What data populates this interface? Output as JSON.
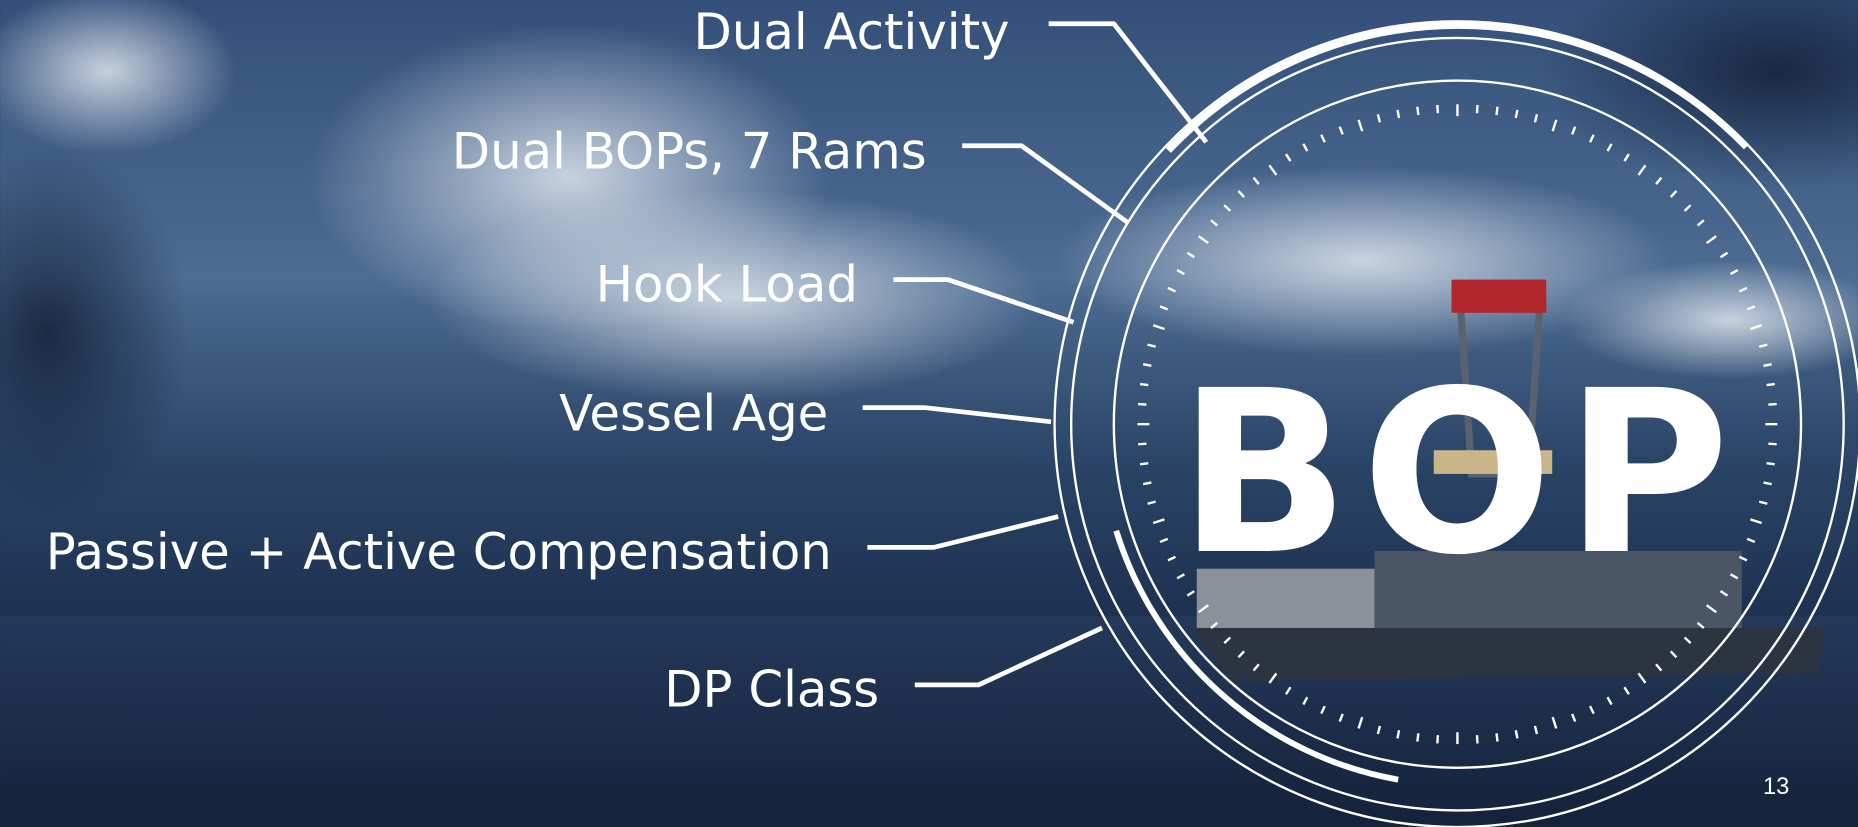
{
  "labels": [
    "Dual Activity",
    "Dual BOPs, 7 Rams",
    "Hook Load",
    "Vessel Age",
    "Passive + Active Compensation",
    "DP Class"
  ],
  "center": "BOP",
  "page_number": "13"
}
